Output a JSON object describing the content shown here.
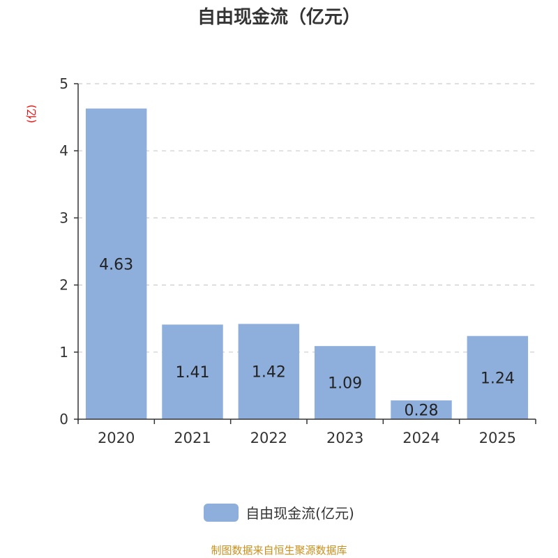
{
  "title": "自由现金流（亿元）",
  "source_text": "制图数据来自恒生聚源数据库",
  "colors": {
    "bar": "#8eaedc",
    "axis": "#333333",
    "grid": "#cccccc",
    "unit": "#ff0000",
    "source": "#c8901e"
  },
  "chart_data": {
    "type": "bar",
    "title": "自由现金流（亿元）",
    "categories": [
      "2020",
      "2021",
      "2022",
      "2023",
      "2024",
      "2025"
    ],
    "series": [
      {
        "name": "自由现金流(亿元)",
        "values": [
          4.63,
          1.41,
          1.42,
          1.09,
          0.28,
          1.24
        ]
      }
    ],
    "value_labels": [
      "4.63",
      "1.41",
      "1.42",
      "1.09",
      "0.28",
      "1.24"
    ],
    "ylabel": "(亿)",
    "ylim": [
      0,
      5
    ],
    "yticks": [
      "0",
      "1",
      "2",
      "3",
      "4",
      "5"
    ],
    "grid": true,
    "legend_position": "bottom-center"
  }
}
